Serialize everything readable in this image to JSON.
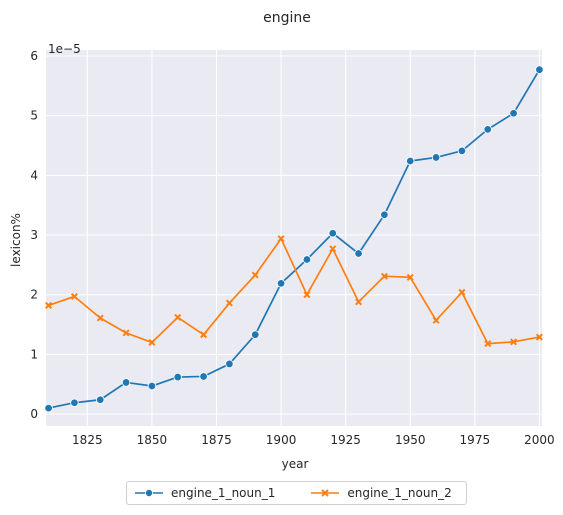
{
  "chart_data": {
    "type": "line",
    "title": "engine",
    "xlabel": "year",
    "ylabel": "lexicon%",
    "y_multiplier_label": "1e−5",
    "x": [
      1810,
      1820,
      1830,
      1840,
      1850,
      1860,
      1870,
      1880,
      1890,
      1900,
      1910,
      1920,
      1930,
      1940,
      1950,
      1960,
      1970,
      1980,
      1990,
      2000
    ],
    "xlim": [
      1809,
      2001
    ],
    "ylim": [
      -0.2,
      6.1
    ],
    "xticks": [
      1825,
      1850,
      1875,
      1900,
      1925,
      1950,
      1975,
      2000
    ],
    "yticks": [
      0,
      1,
      2,
      3,
      4,
      5,
      6
    ],
    "grid": true,
    "legend_position": "bottom-center",
    "series": [
      {
        "name": "engine_1_noun_1",
        "color": "#1f77b4",
        "marker": "circle",
        "values": [
          0.1,
          0.19,
          0.24,
          0.53,
          0.47,
          0.62,
          0.63,
          0.84,
          1.33,
          2.19,
          2.59,
          3.03,
          2.69,
          3.34,
          4.24,
          4.3,
          4.41,
          4.77,
          5.04,
          5.77
        ]
      },
      {
        "name": "engine_1_noun_2",
        "color": "#ff7f0e",
        "marker": "x",
        "values": [
          1.82,
          1.97,
          1.61,
          1.36,
          1.2,
          1.62,
          1.33,
          1.86,
          2.33,
          2.94,
          2.0,
          2.77,
          1.88,
          2.31,
          2.29,
          1.57,
          2.04,
          1.18,
          1.21,
          1.29
        ]
      }
    ]
  }
}
